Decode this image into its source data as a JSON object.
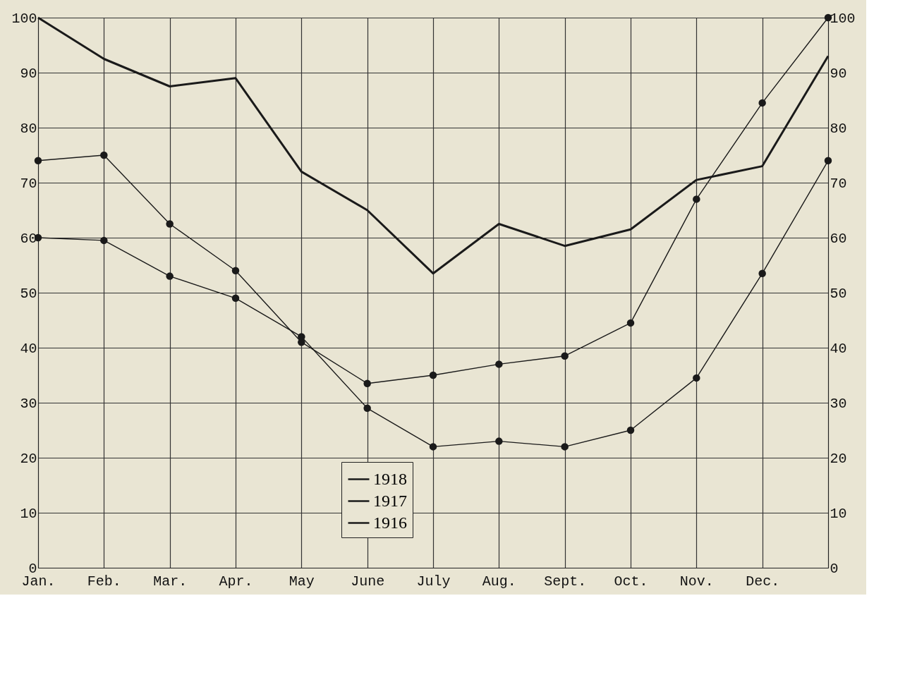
{
  "chart_data": {
    "type": "line",
    "categories": [
      "Jan.",
      "Feb.",
      "Mar.",
      "Apr.",
      "May",
      "June",
      "July",
      "Aug.",
      "Sept.",
      "Oct.",
      "Nov.",
      "Dec.",
      null
    ],
    "series": [
      {
        "name": "1918",
        "color": "#1a1a1a",
        "marker": "none",
        "values": [
          100,
          92.5,
          87.5,
          89,
          72,
          65,
          53.5,
          62.5,
          58.5,
          61.5,
          70.5,
          73,
          93
        ]
      },
      {
        "name": "1917",
        "color": "#1a1a1a",
        "marker": "circle",
        "values": [
          74,
          75,
          62.5,
          54,
          41,
          33.5,
          35,
          37,
          38.5,
          44.5,
          67,
          84.5,
          100
        ]
      },
      {
        "name": "1916",
        "color": "#1a1a1a",
        "marker": "circle",
        "values": [
          60,
          59.5,
          53,
          49,
          42,
          29,
          22,
          23,
          22,
          25,
          34.5,
          53.5,
          74
        ]
      }
    ],
    "ylim": [
      0,
      100
    ],
    "yticks": [
      0,
      10,
      20,
      30,
      40,
      50,
      60,
      70,
      80,
      90,
      100
    ],
    "y2lim": [
      0,
      100
    ],
    "y2ticks": [
      0,
      10,
      20,
      30,
      40,
      50,
      60,
      70,
      80,
      90,
      100
    ],
    "grid": true,
    "legend": "bottom"
  }
}
